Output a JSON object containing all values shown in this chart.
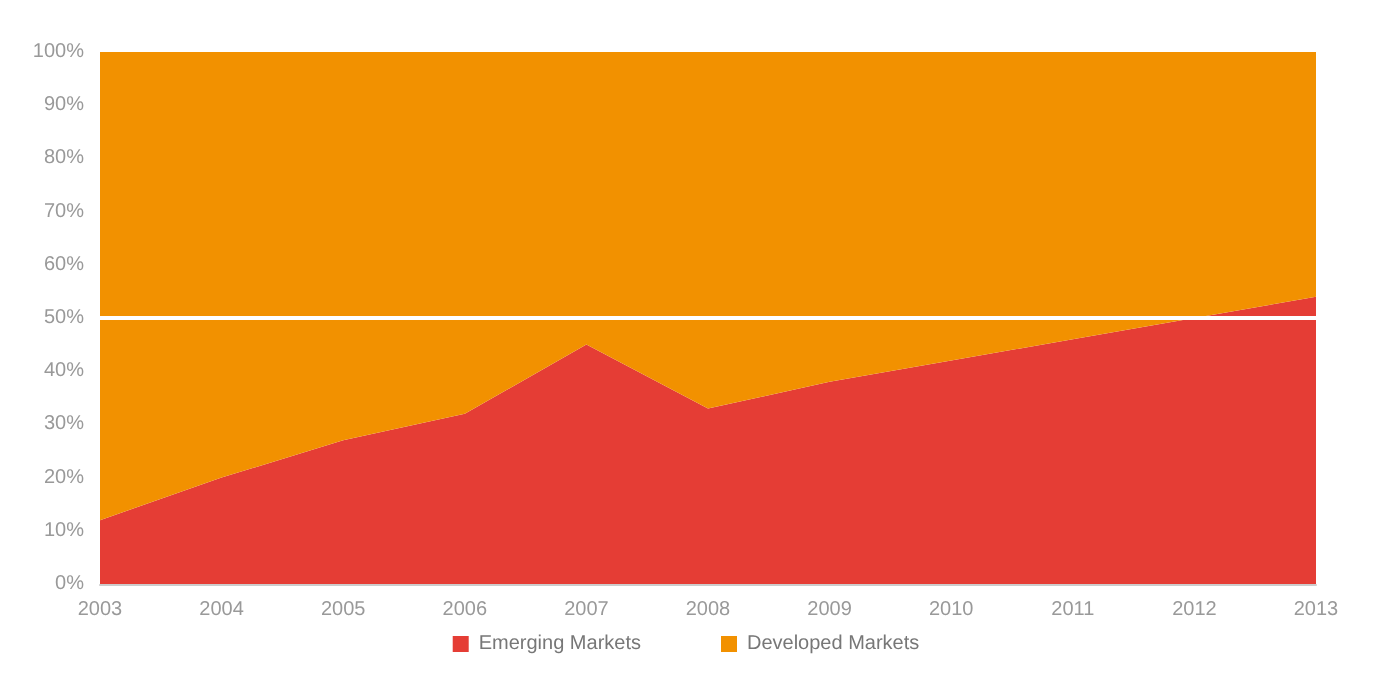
{
  "chart_data": {
    "type": "area",
    "stacked": true,
    "categories": [
      "2003",
      "2004",
      "2005",
      "2006",
      "2007",
      "2008",
      "2009",
      "2010",
      "2011",
      "2012",
      "2013"
    ],
    "series": [
      {
        "name": "Emerging Markets",
        "color": "#e53d35",
        "values": [
          12,
          20,
          27,
          32,
          45,
          33,
          38,
          42,
          46,
          50,
          54
        ]
      },
      {
        "name": "Developed Markets",
        "color": "#f29100",
        "values": [
          88,
          80,
          73,
          68,
          55,
          67,
          62,
          58,
          54,
          50,
          46
        ]
      }
    ],
    "ylim": [
      0,
      100
    ],
    "yticks": [
      {
        "value": 0,
        "label": "0%"
      },
      {
        "value": 10,
        "label": "10%"
      },
      {
        "value": 20,
        "label": "20%"
      },
      {
        "value": 30,
        "label": "30%"
      },
      {
        "value": 40,
        "label": "40%"
      },
      {
        "value": 50,
        "label": "50%"
      },
      {
        "value": 60,
        "label": "60%"
      },
      {
        "value": 70,
        "label": "70%"
      },
      {
        "value": 80,
        "label": "80%"
      },
      {
        "value": 90,
        "label": "90%"
      },
      {
        "value": 100,
        "label": "100%"
      }
    ],
    "ref_lines": [
      {
        "axis": "y",
        "value": 50,
        "color": "#ffffff"
      }
    ],
    "grid": false,
    "legend": "bottom"
  }
}
